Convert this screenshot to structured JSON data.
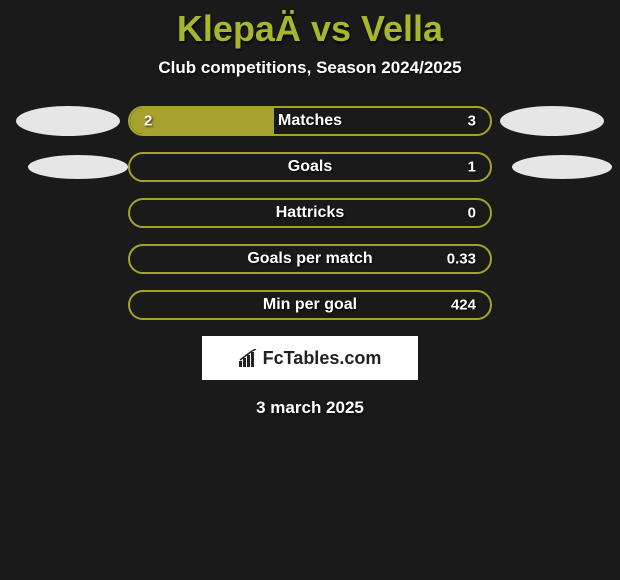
{
  "title": {
    "text": "KlepaÄ vs Vella",
    "color": "#a7b62d",
    "fontsize": 36
  },
  "subtitle": "Club competitions, Season 2024/2025",
  "colors": {
    "background": "#1a1a1a",
    "left_accent": "#e6e6e6",
    "right_accent": "#e6e6e6",
    "bar_fill": "#a7a22e",
    "bar_border": "#a7a22e",
    "text": "#ffffff"
  },
  "rows": [
    {
      "label": "Matches",
      "left_value": "2",
      "right_value": "3",
      "left_pct": 40,
      "show_left_ellipse": true,
      "left_ellipse_color": "#e6e6e6",
      "show_right_ellipse": true,
      "right_ellipse_color": "#e6e6e6",
      "style": "split"
    },
    {
      "label": "Goals",
      "left_value": "",
      "right_value": "1",
      "left_pct": 0,
      "show_left_ellipse": true,
      "left_ellipse_color": "#e6e6e6",
      "show_right_ellipse": true,
      "right_ellipse_color": "#e6e6e6",
      "style": "full_border"
    },
    {
      "label": "Hattricks",
      "left_value": "",
      "right_value": "0",
      "left_pct": 0,
      "show_left_ellipse": false,
      "show_right_ellipse": false,
      "style": "full_border"
    },
    {
      "label": "Goals per match",
      "left_value": "",
      "right_value": "0.33",
      "left_pct": 0,
      "show_left_ellipse": false,
      "show_right_ellipse": false,
      "style": "full_border"
    },
    {
      "label": "Min per goal",
      "left_value": "",
      "right_value": "424",
      "left_pct": 0,
      "show_left_ellipse": false,
      "show_right_ellipse": false,
      "style": "full_border"
    }
  ],
  "logo_text": "FcTables.com",
  "date_text": "3 march 2025"
}
